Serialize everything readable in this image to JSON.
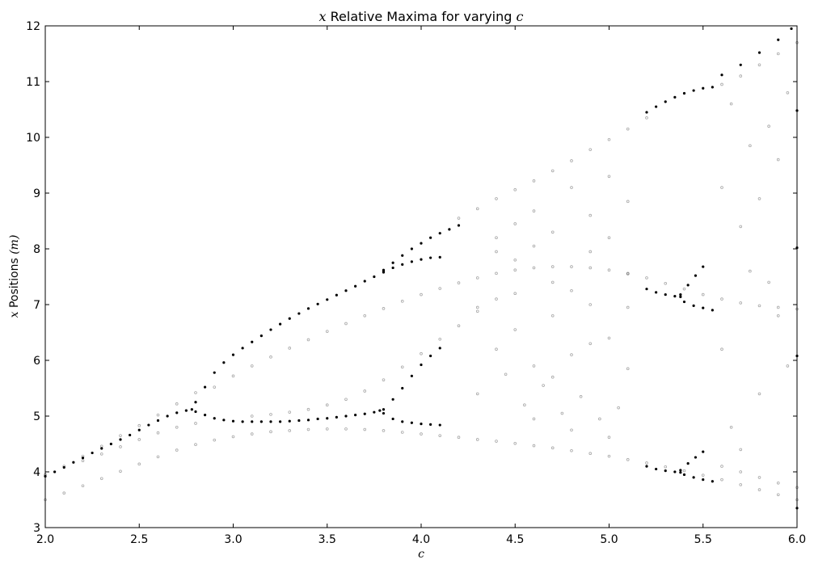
{
  "chart_data": {
    "type": "scatter",
    "title": {
      "var": "x",
      "text": " Relative Maxima for varying ",
      "param": "c"
    },
    "xlabel": "c",
    "ylabel": {
      "var": "x",
      "text": " Positions ",
      "unit": "(m)"
    },
    "xlim": [
      2.0,
      6.0
    ],
    "ylim": [
      3,
      12
    ],
    "xticks": [
      "2.0",
      "2.5",
      "3.0",
      "3.5",
      "4.0",
      "4.5",
      "5.0",
      "5.5",
      "6.0"
    ],
    "yticks": [
      "3",
      "4",
      "5",
      "6",
      "7",
      "8",
      "9",
      "10",
      "11",
      "12"
    ],
    "grid": false,
    "legend": "none",
    "marker_color": "#000000",
    "series": [
      {
        "style": "dark",
        "points": [
          [
            2.0,
            3.92
          ],
          [
            2.05,
            4.0
          ],
          [
            2.1,
            4.08
          ],
          [
            2.15,
            4.17
          ],
          [
            2.2,
            4.25
          ],
          [
            2.25,
            4.34
          ],
          [
            2.3,
            4.42
          ],
          [
            2.35,
            4.5
          ],
          [
            2.4,
            4.58
          ],
          [
            2.45,
            4.66
          ],
          [
            2.5,
            4.75
          ],
          [
            2.55,
            4.84
          ],
          [
            2.6,
            4.92
          ],
          [
            2.65,
            5.0
          ],
          [
            2.7,
            5.06
          ],
          [
            2.75,
            5.1
          ],
          [
            2.78,
            5.12
          ],
          [
            2.8,
            5.08
          ],
          [
            2.85,
            5.02
          ],
          [
            2.9,
            4.96
          ],
          [
            2.95,
            4.93
          ],
          [
            3.0,
            4.91
          ],
          [
            3.05,
            4.9
          ],
          [
            3.1,
            4.9
          ],
          [
            3.15,
            4.9
          ],
          [
            3.2,
            4.9
          ],
          [
            3.25,
            4.9
          ],
          [
            3.3,
            4.91
          ],
          [
            3.35,
            4.92
          ],
          [
            3.4,
            4.93
          ],
          [
            3.45,
            4.95
          ],
          [
            3.5,
            4.96
          ],
          [
            3.55,
            4.98
          ],
          [
            3.6,
            5.0
          ],
          [
            3.65,
            5.02
          ],
          [
            3.7,
            5.04
          ],
          [
            3.75,
            5.07
          ],
          [
            3.78,
            5.1
          ],
          [
            2.8,
            5.25
          ],
          [
            2.85,
            5.52
          ],
          [
            2.9,
            5.78
          ],
          [
            2.95,
            5.96
          ],
          [
            3.0,
            6.1
          ],
          [
            3.05,
            6.22
          ],
          [
            3.1,
            6.33
          ],
          [
            3.15,
            6.44
          ],
          [
            3.2,
            6.55
          ],
          [
            3.25,
            6.65
          ],
          [
            3.3,
            6.75
          ],
          [
            3.35,
            6.84
          ],
          [
            3.4,
            6.93
          ],
          [
            3.45,
            7.01
          ],
          [
            3.5,
            7.09
          ],
          [
            3.55,
            7.17
          ],
          [
            3.6,
            7.25
          ],
          [
            3.65,
            7.33
          ],
          [
            3.7,
            7.42
          ],
          [
            3.75,
            7.5
          ],
          [
            3.8,
            7.58
          ],
          [
            3.8,
            7.6
          ],
          [
            3.85,
            7.66
          ],
          [
            3.9,
            7.72
          ],
          [
            3.95,
            7.77
          ],
          [
            4.0,
            7.81
          ],
          [
            4.05,
            7.84
          ],
          [
            4.1,
            7.85
          ],
          [
            3.8,
            7.62
          ],
          [
            3.85,
            7.75
          ],
          [
            3.9,
            7.88
          ],
          [
            3.95,
            8.0
          ],
          [
            4.0,
            8.1
          ],
          [
            4.05,
            8.2
          ],
          [
            4.1,
            8.28
          ],
          [
            4.15,
            8.35
          ],
          [
            4.2,
            8.42
          ],
          [
            3.8,
            5.05
          ],
          [
            3.85,
            4.95
          ],
          [
            3.9,
            4.9
          ],
          [
            3.95,
            4.88
          ],
          [
            4.0,
            4.86
          ],
          [
            4.05,
            4.85
          ],
          [
            4.1,
            4.84
          ],
          [
            3.8,
            5.12
          ],
          [
            3.85,
            5.3
          ],
          [
            3.9,
            5.5
          ],
          [
            3.95,
            5.72
          ],
          [
            4.0,
            5.92
          ],
          [
            4.05,
            6.08
          ],
          [
            4.1,
            6.22
          ],
          [
            5.2,
            10.45
          ],
          [
            5.25,
            10.55
          ],
          [
            5.3,
            10.64
          ],
          [
            5.35,
            10.72
          ],
          [
            5.4,
            10.79
          ],
          [
            5.45,
            10.84
          ],
          [
            5.5,
            10.88
          ],
          [
            5.55,
            10.9
          ],
          [
            5.2,
            7.28
          ],
          [
            5.25,
            7.22
          ],
          [
            5.3,
            7.18
          ],
          [
            5.35,
            7.15
          ],
          [
            5.38,
            7.14
          ],
          [
            5.2,
            4.1
          ],
          [
            5.25,
            4.05
          ],
          [
            5.3,
            4.02
          ],
          [
            5.35,
            4.0
          ],
          [
            5.38,
            3.99
          ],
          [
            5.38,
            7.18
          ],
          [
            5.42,
            7.35
          ],
          [
            5.46,
            7.52
          ],
          [
            5.5,
            7.68
          ],
          [
            5.38,
            4.03
          ],
          [
            5.42,
            4.15
          ],
          [
            5.46,
            4.26
          ],
          [
            5.5,
            4.36
          ],
          [
            5.4,
            3.95
          ],
          [
            5.45,
            3.9
          ],
          [
            5.5,
            3.86
          ],
          [
            5.55,
            3.83
          ],
          [
            5.4,
            7.05
          ],
          [
            5.45,
            6.98
          ],
          [
            5.5,
            6.94
          ],
          [
            5.55,
            6.9
          ],
          [
            5.6,
            11.12
          ],
          [
            5.7,
            11.3
          ],
          [
            5.8,
            11.52
          ],
          [
            5.9,
            11.75
          ],
          [
            5.97,
            11.95
          ],
          [
            6.0,
            8.02
          ],
          [
            6.0,
            6.08
          ],
          [
            6.0,
            3.35
          ],
          [
            6.0,
            10.48
          ]
        ]
      },
      {
        "style": "light",
        "points": [
          [
            2.0,
            3.5
          ],
          [
            2.1,
            3.62
          ],
          [
            2.2,
            3.75
          ],
          [
            2.3,
            3.88
          ],
          [
            2.4,
            4.01
          ],
          [
            2.5,
            4.14
          ],
          [
            2.6,
            4.27
          ],
          [
            2.7,
            4.39
          ],
          [
            2.8,
            4.49
          ],
          [
            2.9,
            4.57
          ],
          [
            3.0,
            4.63
          ],
          [
            3.1,
            4.68
          ],
          [
            3.2,
            4.72
          ],
          [
            3.3,
            4.74
          ],
          [
            3.4,
            4.76
          ],
          [
            3.5,
            4.77
          ],
          [
            3.6,
            4.77
          ],
          [
            3.7,
            4.76
          ],
          [
            3.8,
            4.74
          ],
          [
            3.9,
            4.71
          ],
          [
            4.0,
            4.68
          ],
          [
            4.1,
            4.65
          ],
          [
            4.2,
            4.62
          ],
          [
            4.3,
            4.58
          ],
          [
            4.4,
            4.55
          ],
          [
            4.5,
            4.51
          ],
          [
            4.6,
            4.47
          ],
          [
            4.7,
            4.43
          ],
          [
            4.8,
            4.38
          ],
          [
            4.9,
            4.33
          ],
          [
            5.0,
            4.28
          ],
          [
            5.1,
            4.22
          ],
          [
            5.2,
            4.16
          ],
          [
            5.3,
            4.09
          ],
          [
            5.4,
            4.02
          ],
          [
            5.5,
            3.94
          ],
          [
            5.6,
            3.86
          ],
          [
            5.7,
            3.77
          ],
          [
            5.8,
            3.68
          ],
          [
            5.9,
            3.59
          ],
          [
            6.0,
            3.5
          ],
          [
            2.0,
            3.95
          ],
          [
            2.1,
            4.1
          ],
          [
            2.2,
            4.28
          ],
          [
            2.3,
            4.46
          ],
          [
            2.4,
            4.65
          ],
          [
            2.5,
            4.83
          ],
          [
            2.6,
            5.02
          ],
          [
            2.7,
            5.22
          ],
          [
            2.8,
            5.42
          ],
          [
            2.2,
            4.2
          ],
          [
            2.3,
            4.32
          ],
          [
            2.4,
            4.45
          ],
          [
            2.5,
            4.58
          ],
          [
            2.6,
            4.7
          ],
          [
            2.7,
            4.8
          ],
          [
            2.8,
            4.87
          ],
          [
            2.9,
            5.52
          ],
          [
            3.0,
            5.72
          ],
          [
            3.1,
            5.9
          ],
          [
            3.2,
            6.06
          ],
          [
            3.3,
            6.22
          ],
          [
            3.4,
            6.37
          ],
          [
            3.5,
            6.52
          ],
          [
            3.6,
            6.66
          ],
          [
            3.7,
            6.8
          ],
          [
            3.8,
            6.93
          ],
          [
            3.9,
            7.06
          ],
          [
            4.0,
            7.18
          ],
          [
            4.1,
            7.29
          ],
          [
            4.2,
            7.39
          ],
          [
            4.3,
            7.48
          ],
          [
            4.4,
            7.56
          ],
          [
            4.5,
            7.62
          ],
          [
            4.6,
            7.66
          ],
          [
            4.7,
            7.68
          ],
          [
            4.8,
            7.68
          ],
          [
            4.9,
            7.66
          ],
          [
            5.0,
            7.62
          ],
          [
            5.1,
            7.56
          ],
          [
            5.2,
            7.48
          ],
          [
            5.3,
            7.38
          ],
          [
            5.4,
            7.28
          ],
          [
            5.5,
            7.18
          ],
          [
            5.6,
            7.1
          ],
          [
            5.7,
            7.03
          ],
          [
            5.8,
            6.98
          ],
          [
            5.9,
            6.95
          ],
          [
            6.0,
            6.92
          ],
          [
            3.1,
            5.0
          ],
          [
            3.2,
            5.03
          ],
          [
            3.3,
            5.07
          ],
          [
            3.4,
            5.12
          ],
          [
            3.5,
            5.2
          ],
          [
            3.6,
            5.3
          ],
          [
            3.7,
            5.45
          ],
          [
            3.8,
            5.65
          ],
          [
            3.9,
            5.88
          ],
          [
            4.0,
            6.12
          ],
          [
            4.1,
            6.38
          ],
          [
            4.2,
            6.62
          ],
          [
            4.3,
            6.88
          ],
          [
            4.4,
            7.1
          ],
          [
            4.2,
            8.55
          ],
          [
            4.3,
            8.72
          ],
          [
            4.4,
            8.9
          ],
          [
            4.5,
            9.06
          ],
          [
            4.6,
            9.22
          ],
          [
            4.7,
            9.4
          ],
          [
            4.8,
            9.58
          ],
          [
            4.9,
            9.78
          ],
          [
            5.0,
            9.96
          ],
          [
            5.1,
            10.15
          ],
          [
            5.2,
            10.35
          ],
          [
            4.4,
            8.2
          ],
          [
            4.5,
            8.45
          ],
          [
            4.6,
            8.68
          ],
          [
            4.7,
            8.3
          ],
          [
            4.8,
            9.1
          ],
          [
            4.9,
            8.6
          ],
          [
            5.0,
            9.3
          ],
          [
            5.1,
            8.85
          ],
          [
            4.4,
            6.2
          ],
          [
            4.5,
            6.55
          ],
          [
            4.6,
            5.9
          ],
          [
            4.7,
            6.8
          ],
          [
            4.8,
            6.1
          ],
          [
            4.9,
            7.0
          ],
          [
            5.0,
            6.4
          ],
          [
            5.1,
            6.95
          ],
          [
            4.3,
            5.4
          ],
          [
            4.45,
            5.75
          ],
          [
            4.55,
            5.2
          ],
          [
            4.65,
            5.55
          ],
          [
            4.75,
            5.05
          ],
          [
            4.85,
            5.35
          ],
          [
            4.95,
            4.95
          ],
          [
            5.05,
            5.15
          ],
          [
            4.4,
            7.95
          ],
          [
            4.5,
            7.8
          ],
          [
            4.6,
            8.05
          ],
          [
            4.7,
            7.4
          ],
          [
            4.8,
            7.25
          ],
          [
            4.9,
            7.95
          ],
          [
            5.0,
            8.2
          ],
          [
            5.1,
            7.55
          ],
          [
            4.3,
            6.95
          ],
          [
            4.5,
            7.2
          ],
          [
            4.7,
            5.7
          ],
          [
            4.9,
            6.3
          ],
          [
            5.1,
            5.85
          ],
          [
            4.6,
            4.95
          ],
          [
            4.8,
            4.75
          ],
          [
            5.0,
            4.62
          ],
          [
            5.6,
            6.2
          ],
          [
            5.7,
            8.4
          ],
          [
            5.8,
            5.4
          ],
          [
            5.9,
            9.6
          ],
          [
            5.65,
            4.8
          ],
          [
            5.75,
            7.6
          ],
          [
            5.85,
            10.2
          ],
          [
            5.95,
            5.9
          ],
          [
            5.6,
            9.1
          ],
          [
            5.7,
            4.4
          ],
          [
            5.8,
            8.9
          ],
          [
            5.9,
            6.8
          ],
          [
            5.95,
            10.8
          ],
          [
            5.65,
            10.6
          ],
          [
            5.75,
            9.85
          ],
          [
            5.85,
            7.4
          ],
          [
            5.6,
            4.1
          ],
          [
            5.7,
            4.0
          ],
          [
            5.8,
            3.9
          ],
          [
            5.9,
            3.8
          ],
          [
            6.0,
            3.72
          ],
          [
            5.6,
            10.95
          ],
          [
            5.7,
            11.1
          ],
          [
            5.8,
            11.3
          ],
          [
            5.9,
            11.5
          ],
          [
            6.0,
            11.7
          ]
        ]
      }
    ]
  }
}
